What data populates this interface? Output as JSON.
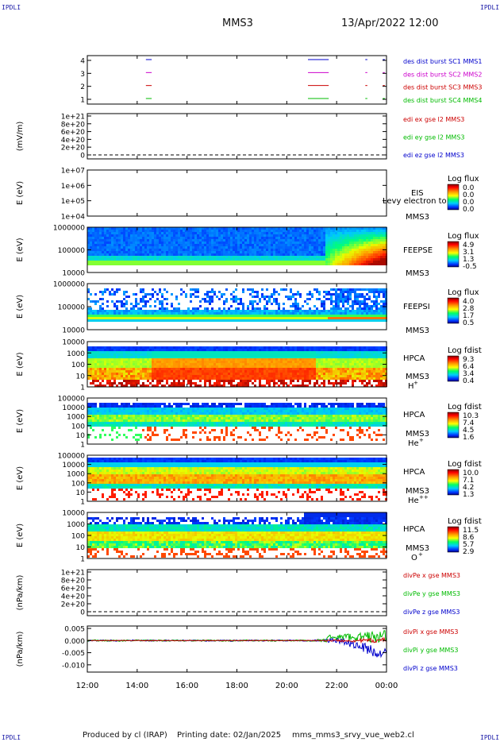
{
  "header": {
    "corner_tl": "IPDLI",
    "corner_tr": "IPDLI",
    "corner_bl": "IPDLI",
    "corner_br": "IPDLI",
    "spacecraft": "MMS3",
    "datetime": "13/Apr/2022 12:00"
  },
  "footer": {
    "produced_by": "Produced by cl (IRAP)",
    "printing_date": "Printing date: 02/Jan/2025",
    "config": "mms_mms3_srvy_vue_web2.cl"
  },
  "colors": {
    "blue": "#0000cc",
    "magenta": "#cc00cc",
    "red": "#cc0000",
    "green": "#00bb00"
  },
  "chart_data": {
    "type": "multi-panel time series",
    "x_ticks": [
      "12:00",
      "14:00",
      "16:00",
      "18:00",
      "20:00",
      "22:00",
      "00:00"
    ],
    "x_range_hours": [
      12,
      24
    ],
    "panels": [
      {
        "id": "burst",
        "ylabel": "",
        "yticks": [
          "4",
          "3",
          "2",
          "1"
        ],
        "legend": [
          {
            "label": "des dist burst SC1 MMS1",
            "color": "#0000cc"
          },
          {
            "label": "des dist burst SC2 MMS2",
            "color": "#cc00cc"
          },
          {
            "label": "des dist burst SC3 MMS3",
            "color": "#cc0000"
          },
          {
            "label": "des dist burst SC4 MMS4",
            "color": "#00bb00"
          }
        ],
        "intervals_hours": [
          [
            14.35,
            14.55
          ],
          [
            20.85,
            21.65
          ],
          [
            23.15,
            23.2
          ],
          [
            23.85,
            23.9
          ]
        ]
      },
      {
        "id": "edi",
        "ylabel": "(mV/m)",
        "yticks": [
          "1e+21",
          "8e+20",
          "6e+20",
          "4e+20",
          "2e+20",
          "0"
        ],
        "legend": [
          {
            "label": "edi ex gse l2 MMS3",
            "color": "#cc0000"
          },
          {
            "label": "edi ey gse l2 MMS3",
            "color": "#00bb00"
          },
          {
            "label": "edi ez gse l2 MMS3",
            "color": "#0000cc"
          }
        ]
      },
      {
        "id": "eis",
        "ylabel": "E (eV)",
        "yticks": [
          "1e+07",
          "1e+06",
          "1e+05",
          "1e+04"
        ],
        "instrument": "EIS",
        "sc": "MMS3",
        "overlay": "Levy electron to",
        "cbar_title": "Log flux",
        "cbar_ticks": [
          "0.0",
          "0.0",
          "0.0",
          "0.0"
        ]
      },
      {
        "id": "feepse",
        "ylabel": "E (eV)",
        "yticks": [
          "1000000",
          "100000",
          "10000"
        ],
        "instrument": "FEEPSE",
        "sc": "MMS3",
        "cbar_title": "Log flux",
        "cbar_ticks": [
          "4.9",
          "3.1",
          "1.3",
          "-0.5"
        ]
      },
      {
        "id": "feepsi",
        "ylabel": "E (eV)",
        "yticks": [
          "1000000",
          "100000",
          "10000"
        ],
        "instrument": "FEEPSI",
        "sc": "MMS3",
        "cbar_title": "Log flux",
        "cbar_ticks": [
          "4.0",
          "2.8",
          "1.7",
          "0.5"
        ]
      },
      {
        "id": "hpca_h",
        "ylabel": "E (eV)",
        "yticks": [
          "10000",
          "1000",
          "100",
          "10",
          "1"
        ],
        "instrument": "HPCA",
        "sc": "MMS3",
        "species": "H",
        "species_sup": "+",
        "cbar_title": "Log fdist",
        "cbar_ticks": [
          "9.3",
          "6.4",
          "3.4",
          "0.4"
        ]
      },
      {
        "id": "hpca_he",
        "ylabel": "E (eV)",
        "yticks": [
          "100000",
          "10000",
          "1000",
          "100",
          "10",
          "1"
        ],
        "instrument": "HPCA",
        "sc": "MMS3",
        "species": "He",
        "species_sup": "+",
        "cbar_title": "Log fdist",
        "cbar_ticks": [
          "10.3",
          "7.4",
          "4.5",
          "1.6"
        ]
      },
      {
        "id": "hpca_hepp",
        "ylabel": "E (eV)",
        "yticks": [
          "100000",
          "10000",
          "1000",
          "100",
          "10",
          "1"
        ],
        "instrument": "HPCA",
        "sc": "MMS3",
        "species": "He",
        "species_sup": "++",
        "cbar_title": "Log fdist",
        "cbar_ticks": [
          "10.0",
          "7.1",
          "4.2",
          "1.3"
        ]
      },
      {
        "id": "hpca_o",
        "ylabel": "E (eV)",
        "yticks": [
          "10000",
          "1000",
          "100",
          "10",
          "1"
        ],
        "instrument": "HPCA",
        "sc": "MMS3",
        "species": "O",
        "species_sup": "+",
        "cbar_title": "Log fdist",
        "cbar_ticks": [
          "11.5",
          "8.6",
          "5.7",
          "2.9"
        ]
      },
      {
        "id": "divpe",
        "ylabel": "(nPa/km)",
        "yticks": [
          "1e+21",
          "8e+20",
          "6e+20",
          "4e+20",
          "2e+20",
          "0"
        ],
        "legend": [
          {
            "label": "divPe x gse MMS3",
            "color": "#cc0000"
          },
          {
            "label": "divPe y gse MMS3",
            "color": "#00bb00"
          },
          {
            "label": "divPe z gse MMS3",
            "color": "#0000cc"
          }
        ]
      },
      {
        "id": "divpi",
        "ylabel": "(nPa/km)",
        "yticks": [
          "0.005",
          "0.000",
          "-0.005",
          "-0.010"
        ],
        "legend": [
          {
            "label": "divPi x gse MMS3",
            "color": "#cc0000"
          },
          {
            "label": "divPi y gse MMS3",
            "color": "#00bb00"
          },
          {
            "label": "divPi z gse MMS3",
            "color": "#0000cc"
          }
        ],
        "ylim": [
          -0.013,
          0.006
        ]
      }
    ]
  }
}
